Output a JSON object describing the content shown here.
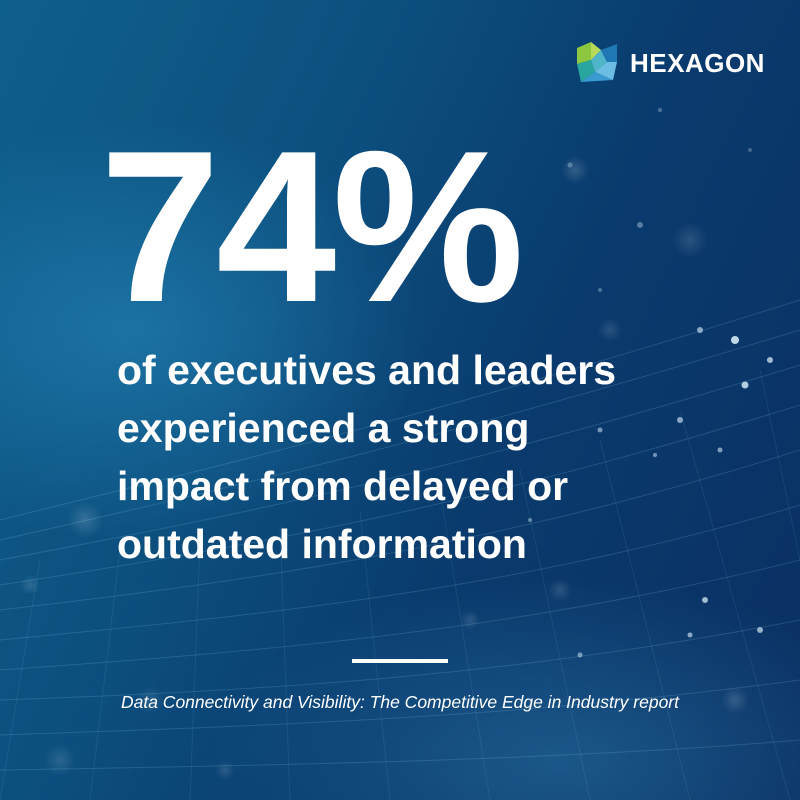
{
  "brand": {
    "name": "HEXAGON",
    "colors": {
      "logo_green": "#8dc63f",
      "logo_teal": "#2aa6a0",
      "logo_blue": "#1f77b4"
    }
  },
  "headline": {
    "value": "74%"
  },
  "description": {
    "lines": [
      "of executives and leaders",
      "experienced a strong",
      "impact from delayed or",
      "outdated information"
    ]
  },
  "source": {
    "text": "Data Connectivity and Visibility: The Competitive Edge in Industry report"
  },
  "colors": {
    "background_start": "#0f5f8c",
    "background_end": "#0a2f62",
    "text": "#ffffff"
  }
}
